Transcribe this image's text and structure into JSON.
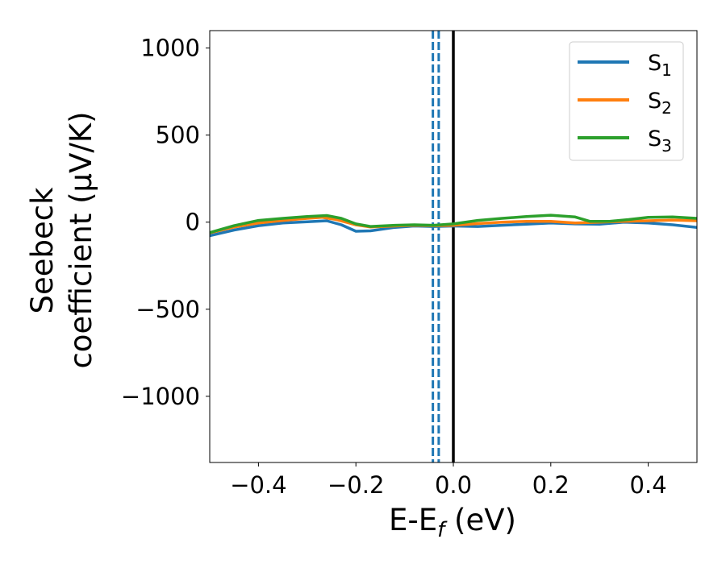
{
  "chart_data": {
    "type": "line",
    "title": "",
    "xlabel": "E-E",
    "xlabel_sub": "f",
    "xlabel_suffix": " (eV)",
    "ylabel_line1": "Seebeck",
    "ylabel_line2": "coefficient  (μV/K)",
    "xlim": [
      -0.5,
      0.5
    ],
    "ylim": [
      -1380,
      1100
    ],
    "xticks": [
      -0.4,
      -0.2,
      0.0,
      0.2,
      0.4
    ],
    "xtick_labels": [
      "−0.4",
      "−0.2",
      "0.0",
      "0.2",
      "0.4"
    ],
    "yticks": [
      -1000,
      -500,
      0,
      500,
      1000
    ],
    "ytick_labels": [
      "−1000",
      "−500",
      "0",
      "500",
      "1000"
    ],
    "grid": false,
    "legend_position": "top-right",
    "vlines": [
      {
        "x": -0.042,
        "style": "dashed",
        "color": "#1f77b4"
      },
      {
        "x": -0.03,
        "style": "dashed",
        "color": "#1f77b4"
      },
      {
        "x": 0.0,
        "style": "solid",
        "color": "#000000"
      }
    ],
    "series": [
      {
        "name": "S",
        "sub": "1",
        "color": "#1f77b4",
        "points": [
          [
            -0.5,
            -78
          ],
          [
            -0.45,
            -45
          ],
          [
            -0.4,
            -20
          ],
          [
            -0.35,
            -5
          ],
          [
            -0.3,
            2
          ],
          [
            -0.26,
            8
          ],
          [
            -0.23,
            -15
          ],
          [
            -0.2,
            -52
          ],
          [
            -0.17,
            -50
          ],
          [
            -0.12,
            -30
          ],
          [
            -0.08,
            -22
          ],
          [
            -0.04,
            -25
          ],
          [
            0.0,
            -22
          ],
          [
            0.05,
            -25
          ],
          [
            0.1,
            -18
          ],
          [
            0.15,
            -12
          ],
          [
            0.2,
            -5
          ],
          [
            0.25,
            -10
          ],
          [
            0.3,
            -12
          ],
          [
            0.35,
            0
          ],
          [
            0.4,
            -5
          ],
          [
            0.45,
            -15
          ],
          [
            0.5,
            -30
          ]
        ]
      },
      {
        "name": "S",
        "sub": "2",
        "color": "#ff7f0e",
        "points": [
          [
            -0.5,
            -62
          ],
          [
            -0.45,
            -28
          ],
          [
            -0.4,
            -5
          ],
          [
            -0.35,
            10
          ],
          [
            -0.3,
            22
          ],
          [
            -0.27,
            28
          ],
          [
            -0.24,
            15
          ],
          [
            -0.2,
            -15
          ],
          [
            -0.17,
            -28
          ],
          [
            -0.12,
            -22
          ],
          [
            -0.08,
            -18
          ],
          [
            -0.04,
            -20
          ],
          [
            0.0,
            -18
          ],
          [
            0.05,
            -8
          ],
          [
            0.1,
            0
          ],
          [
            0.15,
            5
          ],
          [
            0.2,
            5
          ],
          [
            0.25,
            -5
          ],
          [
            0.3,
            0
          ],
          [
            0.35,
            5
          ],
          [
            0.4,
            8
          ],
          [
            0.45,
            12
          ],
          [
            0.5,
            8
          ]
        ]
      },
      {
        "name": "S",
        "sub": "3",
        "color": "#2ca02c",
        "points": [
          [
            -0.5,
            -60
          ],
          [
            -0.45,
            -20
          ],
          [
            -0.4,
            10
          ],
          [
            -0.35,
            22
          ],
          [
            -0.3,
            32
          ],
          [
            -0.26,
            38
          ],
          [
            -0.23,
            22
          ],
          [
            -0.2,
            -10
          ],
          [
            -0.17,
            -25
          ],
          [
            -0.12,
            -18
          ],
          [
            -0.08,
            -15
          ],
          [
            -0.04,
            -18
          ],
          [
            0.0,
            -10
          ],
          [
            0.05,
            10
          ],
          [
            0.1,
            22
          ],
          [
            0.15,
            32
          ],
          [
            0.2,
            40
          ],
          [
            0.25,
            30
          ],
          [
            0.28,
            5
          ],
          [
            0.32,
            5
          ],
          [
            0.36,
            15
          ],
          [
            0.4,
            28
          ],
          [
            0.45,
            30
          ],
          [
            0.5,
            22
          ]
        ]
      }
    ]
  }
}
